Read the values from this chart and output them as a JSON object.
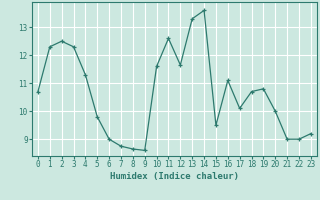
{
  "title": "",
  "xlabel": "Humidex (Indice chaleur)",
  "ylabel": "",
  "background_color": "#cce8e0",
  "grid_color": "#ffffff",
  "line_color": "#2d7a6e",
  "marker_color": "#2d7a6e",
  "x_values": [
    0,
    1,
    2,
    3,
    4,
    5,
    6,
    7,
    8,
    9,
    10,
    11,
    12,
    13,
    14,
    15,
    16,
    17,
    18,
    19,
    20,
    21,
    22,
    23
  ],
  "y_values": [
    10.7,
    12.3,
    12.5,
    12.3,
    11.3,
    9.8,
    9.0,
    8.75,
    8.65,
    8.6,
    11.6,
    12.6,
    11.65,
    13.3,
    13.6,
    9.5,
    11.1,
    10.1,
    10.7,
    10.8,
    10.0,
    9.0,
    9.0,
    9.2
  ],
  "ylim": [
    8.4,
    13.9
  ],
  "yticks": [
    9,
    10,
    11,
    12,
    13
  ],
  "xlim": [
    -0.5,
    23.5
  ],
  "xticks": [
    0,
    1,
    2,
    3,
    4,
    5,
    6,
    7,
    8,
    9,
    10,
    11,
    12,
    13,
    14,
    15,
    16,
    17,
    18,
    19,
    20,
    21,
    22,
    23
  ]
}
